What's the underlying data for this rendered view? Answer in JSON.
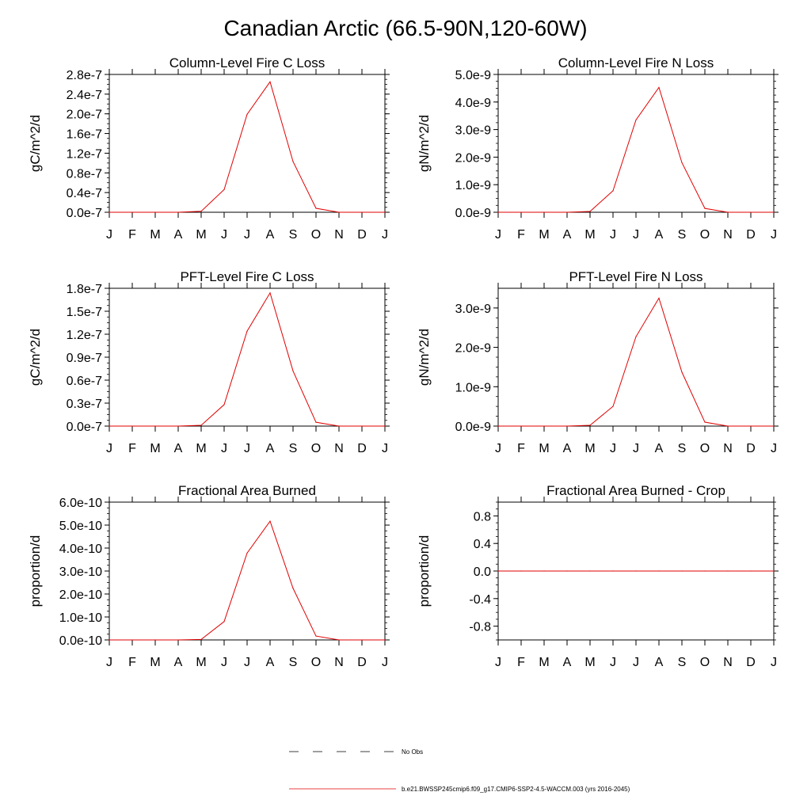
{
  "title": "Canadian Arctic (66.5-90N,120-60W)",
  "colors": {
    "model": "#e00000",
    "axis": "#000000"
  },
  "legend": {
    "obs_label": "No Obs",
    "model_label": "b.e21.BWSSP245cmip6.f09_g17.CMIP6-SSP2-4.5-WACCM.003 (yrs 2016-2045)"
  },
  "chart_data": [
    {
      "type": "line",
      "title": "Column-Level Fire C Loss",
      "ylabel": "gC/m^2/d",
      "categories": [
        "J",
        "F",
        "M",
        "A",
        "M",
        "J",
        "J",
        "A",
        "S",
        "O",
        "N",
        "D",
        "J"
      ],
      "ylim": [
        0,
        2.8e-07
      ],
      "yticks": [
        0,
        4e-08,
        8e-08,
        1.2e-07,
        1.6e-07,
        2e-07,
        2.4e-07,
        2.8e-07
      ],
      "ytick_labels": [
        "0.0e-7",
        "0.4e-7",
        "0.8e-7",
        "1.2e-7",
        "1.6e-7",
        "2.0e-7",
        "2.4e-7",
        "2.8e-7"
      ],
      "series": [
        {
          "name": "model",
          "values": [
            0,
            0,
            0,
            0,
            2e-09,
            4.6e-08,
            1.99e-07,
            2.65e-07,
            1.03e-07,
            8e-09,
            0,
            0,
            0
          ]
        }
      ]
    },
    {
      "type": "line",
      "title": "Column-Level Fire N Loss",
      "ylabel": "gN/m^2/d",
      "categories": [
        "J",
        "F",
        "M",
        "A",
        "M",
        "J",
        "J",
        "A",
        "S",
        "O",
        "N",
        "D",
        "J"
      ],
      "ylim": [
        0,
        5e-09
      ],
      "yticks": [
        0,
        1e-09,
        2e-09,
        3e-09,
        4e-09,
        5e-09
      ],
      "ytick_labels": [
        "0.0e-9",
        "1.0e-9",
        "2.0e-9",
        "3.0e-9",
        "4.0e-9",
        "5.0e-9"
      ],
      "series": [
        {
          "name": "model",
          "values": [
            0,
            0,
            0,
            0,
            3e-11,
            7.8e-10,
            3.35e-09,
            4.53e-09,
            1.8e-09,
            1.4e-10,
            0,
            0,
            0
          ]
        }
      ]
    },
    {
      "type": "line",
      "title": "PFT-Level Fire C Loss",
      "ylabel": "gC/m^2/d",
      "categories": [
        "J",
        "F",
        "M",
        "A",
        "M",
        "J",
        "J",
        "A",
        "S",
        "O",
        "N",
        "D",
        "J"
      ],
      "ylim": [
        0,
        1.8e-07
      ],
      "yticks": [
        0,
        3e-08,
        6e-08,
        9e-08,
        1.2e-07,
        1.5e-07,
        1.8e-07
      ],
      "ytick_labels": [
        "0.0e-7",
        "0.3e-7",
        "0.6e-7",
        "0.9e-7",
        "1.2e-7",
        "1.5e-7",
        "1.8e-7"
      ],
      "series": [
        {
          "name": "model",
          "values": [
            0,
            0,
            0,
            0,
            1e-09,
            2.8e-08,
            1.24e-07,
            1.74e-07,
            7.2e-08,
            5e-09,
            0,
            0,
            0
          ]
        }
      ]
    },
    {
      "type": "line",
      "title": "PFT-Level Fire N Loss",
      "ylabel": "gN/m^2/d",
      "categories": [
        "J",
        "F",
        "M",
        "A",
        "M",
        "J",
        "J",
        "A",
        "S",
        "O",
        "N",
        "D",
        "J"
      ],
      "ylim": [
        0,
        3.5e-09
      ],
      "yticks": [
        0,
        1e-09,
        2e-09,
        3e-09
      ],
      "ytick_labels": [
        "0.0e-9",
        "1.0e-9",
        "2.0e-9",
        "3.0e-9"
      ],
      "series": [
        {
          "name": "model",
          "values": [
            0,
            0,
            0,
            0,
            2e-11,
            5e-10,
            2.27e-09,
            3.25e-09,
            1.37e-09,
            1e-10,
            0,
            0,
            0
          ]
        }
      ]
    },
    {
      "type": "line",
      "title": "Fractional Area Burned",
      "ylabel": "proportion/d",
      "categories": [
        "J",
        "F",
        "M",
        "A",
        "M",
        "J",
        "J",
        "A",
        "S",
        "O",
        "N",
        "D",
        "J"
      ],
      "ylim": [
        0,
        6e-10
      ],
      "yticks": [
        0,
        1e-10,
        2e-10,
        3e-10,
        4e-10,
        5e-10,
        6e-10
      ],
      "ytick_labels": [
        "0.0e-10",
        "1.0e-10",
        "2.0e-10",
        "3.0e-10",
        "4.0e-10",
        "5.0e-10",
        "6.0e-10"
      ],
      "series": [
        {
          "name": "model",
          "values": [
            0,
            0,
            0,
            0,
            2e-12,
            8e-11,
            3.78e-10,
            5.17e-10,
            2.25e-10,
            1.7e-11,
            0,
            0,
            0
          ]
        }
      ]
    },
    {
      "type": "line",
      "title": "Fractional Area Burned - Crop",
      "ylabel": "proportion/d",
      "categories": [
        "J",
        "F",
        "M",
        "A",
        "M",
        "J",
        "J",
        "A",
        "S",
        "O",
        "N",
        "D",
        "J"
      ],
      "ylim": [
        -1.0,
        1.0
      ],
      "yticks": [
        -0.8,
        -0.4,
        0.0,
        0.4,
        0.8
      ],
      "ytick_labels": [
        "-0.8",
        "-0.4",
        "0.0",
        "0.4",
        "0.8"
      ],
      "series": [
        {
          "name": "model",
          "values": [
            0,
            0,
            0,
            0,
            0,
            0,
            0,
            0,
            0,
            0,
            0,
            0,
            0
          ]
        }
      ]
    }
  ]
}
